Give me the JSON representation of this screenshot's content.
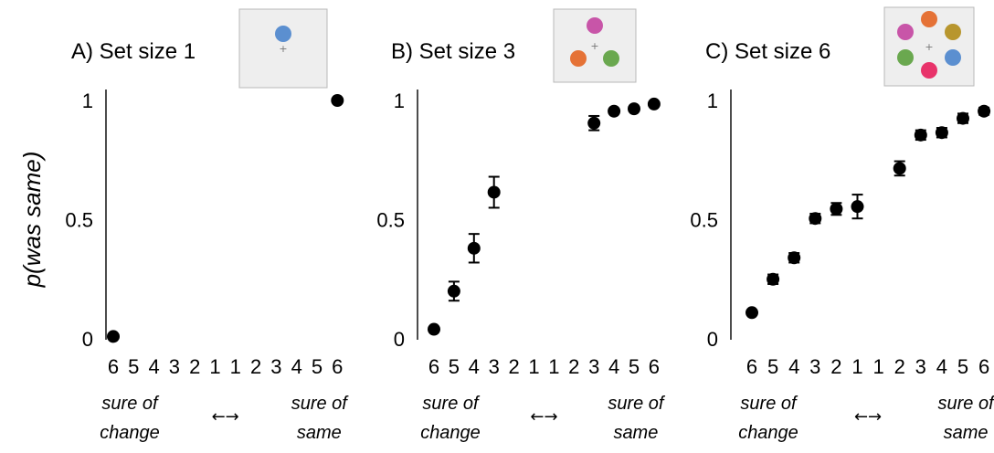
{
  "y_axis_label": "p(was same)",
  "axis_style": {
    "grid": false
  },
  "chart_data": [
    {
      "type": "scatter",
      "title": "A) Set size 1",
      "ylabel": "p(was same)",
      "ylim": [
        0,
        1
      ],
      "yticks": [
        "0",
        "0.5",
        "1"
      ],
      "categories": [
        "6",
        "5",
        "4",
        "3",
        "2",
        "1",
        "1",
        "2",
        "3",
        "4",
        "5",
        "6"
      ],
      "xnotes": {
        "left": [
          "sure of",
          "change"
        ],
        "arrow": "←→",
        "right": [
          "sure of",
          "same"
        ]
      },
      "series": [
        {
          "values": [
            0.01,
            null,
            null,
            null,
            null,
            null,
            null,
            null,
            null,
            null,
            null,
            1.0
          ],
          "err": [
            0,
            0,
            0,
            0,
            0,
            0,
            0,
            0,
            0,
            0,
            0,
            0
          ]
        }
      ],
      "inset_dots": [
        {
          "color": "#5b8fd0"
        }
      ]
    },
    {
      "type": "scatter",
      "title": "B) Set size 3",
      "ylabel": "",
      "ylim": [
        0,
        1
      ],
      "yticks": [
        "0",
        "0.5",
        "1"
      ],
      "categories": [
        "6",
        "5",
        "4",
        "3",
        "2",
        "1",
        "1",
        "2",
        "3",
        "4",
        "5",
        "6"
      ],
      "xnotes": {
        "left": [
          "sure of",
          "change"
        ],
        "arrow": "←→",
        "right": [
          "sure of",
          "same"
        ]
      },
      "series": [
        {
          "values": [
            0.04,
            0.2,
            0.38,
            0.615,
            null,
            null,
            null,
            null,
            0.905,
            0.955,
            0.965,
            0.985
          ],
          "err": [
            0,
            0.04,
            0.06,
            0.065,
            0,
            0,
            0,
            0,
            0.03,
            0,
            0,
            0
          ]
        }
      ],
      "inset_dots": [
        {
          "color": "#c855a8"
        },
        {
          "color": "#e57236"
        },
        {
          "color": "#6aa84f"
        }
      ]
    },
    {
      "type": "scatter",
      "title": "C) Set size 6",
      "ylabel": "",
      "ylim": [
        0,
        1
      ],
      "yticks": [
        "0",
        "0.5",
        "1"
      ],
      "categories": [
        "6",
        "5",
        "4",
        "3",
        "2",
        "1",
        "1",
        "2",
        "3",
        "4",
        "5",
        "6"
      ],
      "xnotes": {
        "left": [
          "sure of",
          "change"
        ],
        "arrow": "←→",
        "right": [
          "sure of",
          "same"
        ]
      },
      "series": [
        {
          "values": [
            0.11,
            0.25,
            0.34,
            0.505,
            0.545,
            0.555,
            null,
            0.715,
            0.855,
            0.865,
            0.925,
            0.955
          ],
          "err": [
            0,
            0.02,
            0.02,
            0.02,
            0.025,
            0.05,
            0,
            0.03,
            0.02,
            0.02,
            0.02,
            0.015
          ]
        }
      ],
      "inset_dots": [
        {
          "color": "#c855a8"
        },
        {
          "color": "#e57236"
        },
        {
          "color": "#b8962e"
        },
        {
          "color": "#6aa84f"
        },
        {
          "color": "#5b8fd0"
        },
        {
          "color": "#e8336a"
        }
      ]
    }
  ]
}
